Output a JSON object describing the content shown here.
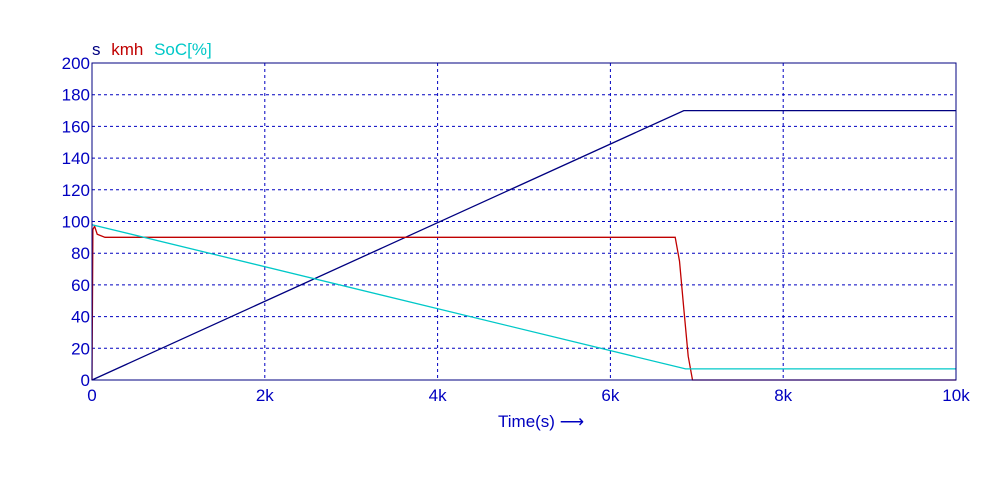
{
  "chart_data": {
    "type": "line",
    "legend": [
      {
        "label": "s",
        "color": "#000080"
      },
      {
        "label": "kmh",
        "color": "#c00000"
      },
      {
        "label": "SoC[%]",
        "color": "#00c8c8"
      }
    ],
    "xlabel": "Time(s)",
    "xlabel_arrow": "⟶",
    "xlim": [
      0,
      10000
    ],
    "ylim": [
      0,
      200
    ],
    "x_ticks": [
      {
        "value": 0,
        "label": "0"
      },
      {
        "value": 2000,
        "label": "2k"
      },
      {
        "value": 4000,
        "label": "4k"
      },
      {
        "value": 6000,
        "label": "6k"
      },
      {
        "value": 8000,
        "label": "8k"
      },
      {
        "value": 10000,
        "label": "10k"
      }
    ],
    "y_ticks": [
      {
        "value": 0,
        "label": "0"
      },
      {
        "value": 20,
        "label": "20"
      },
      {
        "value": 40,
        "label": "40"
      },
      {
        "value": 60,
        "label": "60"
      },
      {
        "value": 80,
        "label": "80"
      },
      {
        "value": 100,
        "label": "100"
      },
      {
        "value": 120,
        "label": "120"
      },
      {
        "value": 140,
        "label": "140"
      },
      {
        "value": 160,
        "label": "160"
      },
      {
        "value": 180,
        "label": "180"
      },
      {
        "value": 200,
        "label": "200"
      }
    ],
    "grid": "dashed",
    "series": [
      {
        "name": "s",
        "color": "#000080",
        "points": [
          [
            0,
            0
          ],
          [
            6850,
            170
          ],
          [
            10000,
            170
          ]
        ]
      },
      {
        "name": "kmh",
        "color": "#c00000",
        "points": [
          [
            0,
            0
          ],
          [
            10,
            95
          ],
          [
            30,
            97
          ],
          [
            60,
            92
          ],
          [
            150,
            90
          ],
          [
            6750,
            90
          ],
          [
            6800,
            75
          ],
          [
            6850,
            45
          ],
          [
            6900,
            15
          ],
          [
            6950,
            0
          ],
          [
            10000,
            0
          ]
        ]
      },
      {
        "name": "SoC[%]",
        "color": "#00c8c8",
        "points": [
          [
            0,
            98
          ],
          [
            6870,
            7
          ],
          [
            10000,
            7
          ]
        ]
      }
    ]
  }
}
